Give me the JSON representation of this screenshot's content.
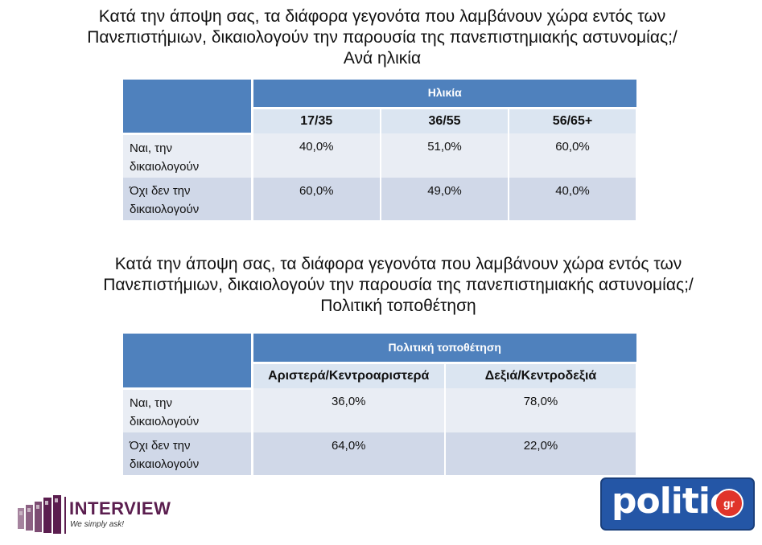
{
  "table1": {
    "title_lines": [
      "Κατά την άποψη σας, τα διάφορα γεγονότα που λαμβάνουν χώρα εντός των",
      "Πανεπιστήμιων, δικαιολογούν την παρουσία της πανεπιστημιακής αστυνομίας;/",
      "Ανά ηλικία"
    ],
    "group_header": "Ηλικία",
    "columns": [
      "17/35",
      "36/55",
      "56/65+"
    ],
    "rows": [
      {
        "label_lines": [
          "Ναι, την",
          "δικαιολογούν"
        ],
        "values": [
          "40,0%",
          "51,0%",
          "60,0%"
        ]
      },
      {
        "label_lines": [
          "Όχι δεν την",
          "δικαιολογούν"
        ],
        "values": [
          "60,0%",
          "49,0%",
          "40,0%"
        ]
      }
    ]
  },
  "table2": {
    "title_lines": [
      "Κατά την άποψη σας, τα διάφορα γεγονότα που λαμβάνουν χώρα εντός των",
      "Πανεπιστήμιων, δικαιολογούν την παρουσία της πανεπιστημιακής αστυνομίας;/",
      "Πολιτική τοποθέτηση"
    ],
    "group_header": "Πολιτική τοποθέτηση",
    "columns": [
      "Αριστερά/Κεντροαριστερά",
      "Δεξιά/Κεντροδεξιά"
    ],
    "rows": [
      {
        "label_lines": [
          "Ναι, την",
          "δικαιολογούν"
        ],
        "values": [
          "36,0%",
          "78,0%"
        ]
      },
      {
        "label_lines": [
          "Όχι δεν την",
          "δικαιολογούν"
        ],
        "values": [
          "64,0%",
          "22,0%"
        ]
      }
    ]
  },
  "logos": {
    "interview": {
      "name": "INTERVIEW",
      "tagline": "We simply ask!"
    },
    "politic": {
      "name": "politic",
      "suffix": "gr"
    }
  },
  "colors": {
    "header_blue": "#4f81bd",
    "subheader": "#dbe5f1",
    "row_light": "#e9edf4",
    "row_dark": "#d0d8e8",
    "interview_purple": "#5b1e4f",
    "politic_blue": "#2456a6",
    "politic_red": "#e0342a"
  }
}
